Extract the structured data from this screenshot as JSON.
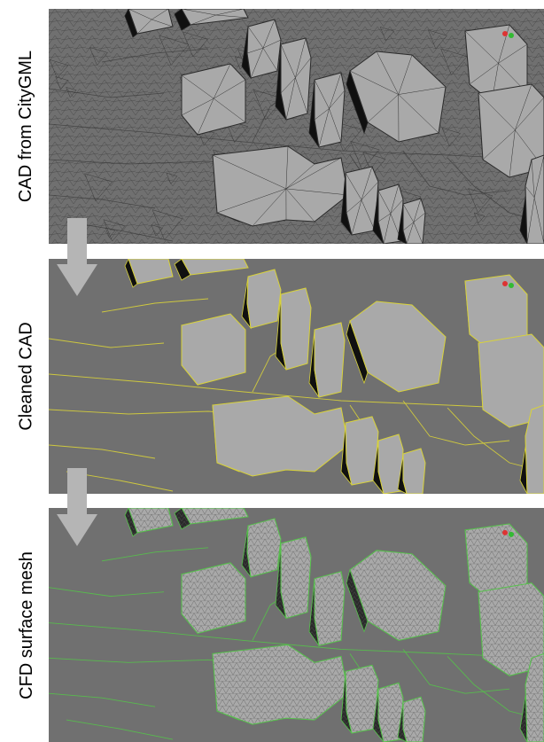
{
  "panels": [
    {
      "label": "CAD from CityGML",
      "edge_color": "#2a2a2a",
      "style": "raw"
    },
    {
      "label": "Cleaned CAD",
      "edge_color": "#d8d23a",
      "style": "cleaned"
    },
    {
      "label": "CFD surface mesh",
      "edge_color": "#55c24a",
      "style": "mesh"
    }
  ],
  "arrow_color": "#b5b5b5",
  "colors": {
    "ground": "#707070",
    "roof": "#a9a9a9",
    "wall_dark": "#101010",
    "wall_mid": "#8c8c8c"
  }
}
